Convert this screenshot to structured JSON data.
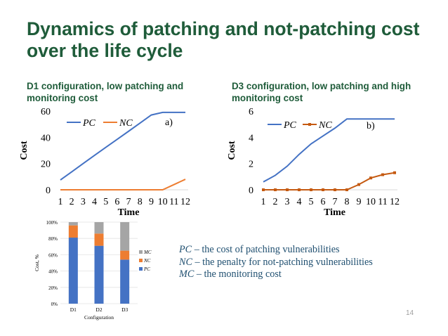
{
  "slide": {
    "title": "Dynamics of patching and not-patching cost over the life cycle",
    "page_number": "14",
    "definitions": [
      {
        "abbr": "PC",
        "text": " – the cost of patching vulnerabilities"
      },
      {
        "abbr": "NC",
        "text": " – the penalty for not-patching vulnerabilities"
      },
      {
        "abbr": "MC",
        "text": " – the monitoring cost"
      }
    ]
  },
  "chart_data": [
    {
      "type": "line",
      "title": "D1 configuration, low patching and monitoring cost",
      "panel_label": "a)",
      "xlabel": "Time",
      "ylabel": "Cost",
      "x": [
        1,
        2,
        3,
        4,
        5,
        6,
        7,
        8,
        9,
        10,
        11,
        12
      ],
      "ylim": [
        0,
        60
      ],
      "yticks": [
        0,
        20,
        40,
        60
      ],
      "grid": false,
      "legend": "top-left",
      "series": [
        {
          "name": "PC",
          "color": "#4472c4",
          "markers": false,
          "values": [
            7.5,
            13.7,
            20,
            26.2,
            32.4,
            38.5,
            44.6,
            50.8,
            57,
            59,
            59,
            59
          ]
        },
        {
          "name": "NC",
          "color": "#ed7d31",
          "markers": false,
          "values": [
            0,
            0,
            0,
            0,
            0,
            0,
            0,
            0,
            0,
            0,
            4,
            8
          ]
        }
      ]
    },
    {
      "type": "line",
      "title": "D3 configuration, low patching and high monitoring cost",
      "panel_label": "b)",
      "xlabel": "Time",
      "ylabel": "Cost",
      "x": [
        1,
        2,
        3,
        4,
        5,
        6,
        7,
        8,
        9,
        10,
        11,
        12
      ],
      "ylim": [
        0,
        6
      ],
      "yticks": [
        0,
        2,
        4,
        6
      ],
      "grid": false,
      "legend": "top-left",
      "series": [
        {
          "name": "PC",
          "color": "#4472c4",
          "markers": false,
          "values": [
            0.6,
            1.1,
            1.8,
            2.7,
            3.5,
            4.1,
            4.7,
            5.4,
            5.4,
            5.4,
            5.4,
            5.4
          ]
        },
        {
          "name": "NC",
          "color": "#c55a11",
          "markers": true,
          "values": [
            0,
            0,
            0,
            0,
            0,
            0,
            0,
            0,
            0.4,
            0.9,
            1.15,
            1.3
          ]
        }
      ]
    },
    {
      "type": "bar",
      "stacked": true,
      "xlabel": "Configuration",
      "ylabel": "Cost, %",
      "categories": [
        "D1",
        "D2",
        "D3"
      ],
      "ylim": [
        0,
        100
      ],
      "yticks": [
        "0%",
        "20%",
        "40%",
        "60%",
        "80%",
        "100%"
      ],
      "legend": "right",
      "legend_order": [
        "MC",
        "NC",
        "PC"
      ],
      "series": [
        {
          "name": "PC",
          "color": "#4472c4",
          "values": [
            81,
            71,
            54
          ]
        },
        {
          "name": "NC",
          "color": "#ed7d31",
          "values": [
            15,
            15,
            11
          ]
        },
        {
          "name": "MC",
          "color": "#a5a5a5",
          "values": [
            4,
            14,
            35
          ]
        }
      ]
    }
  ]
}
